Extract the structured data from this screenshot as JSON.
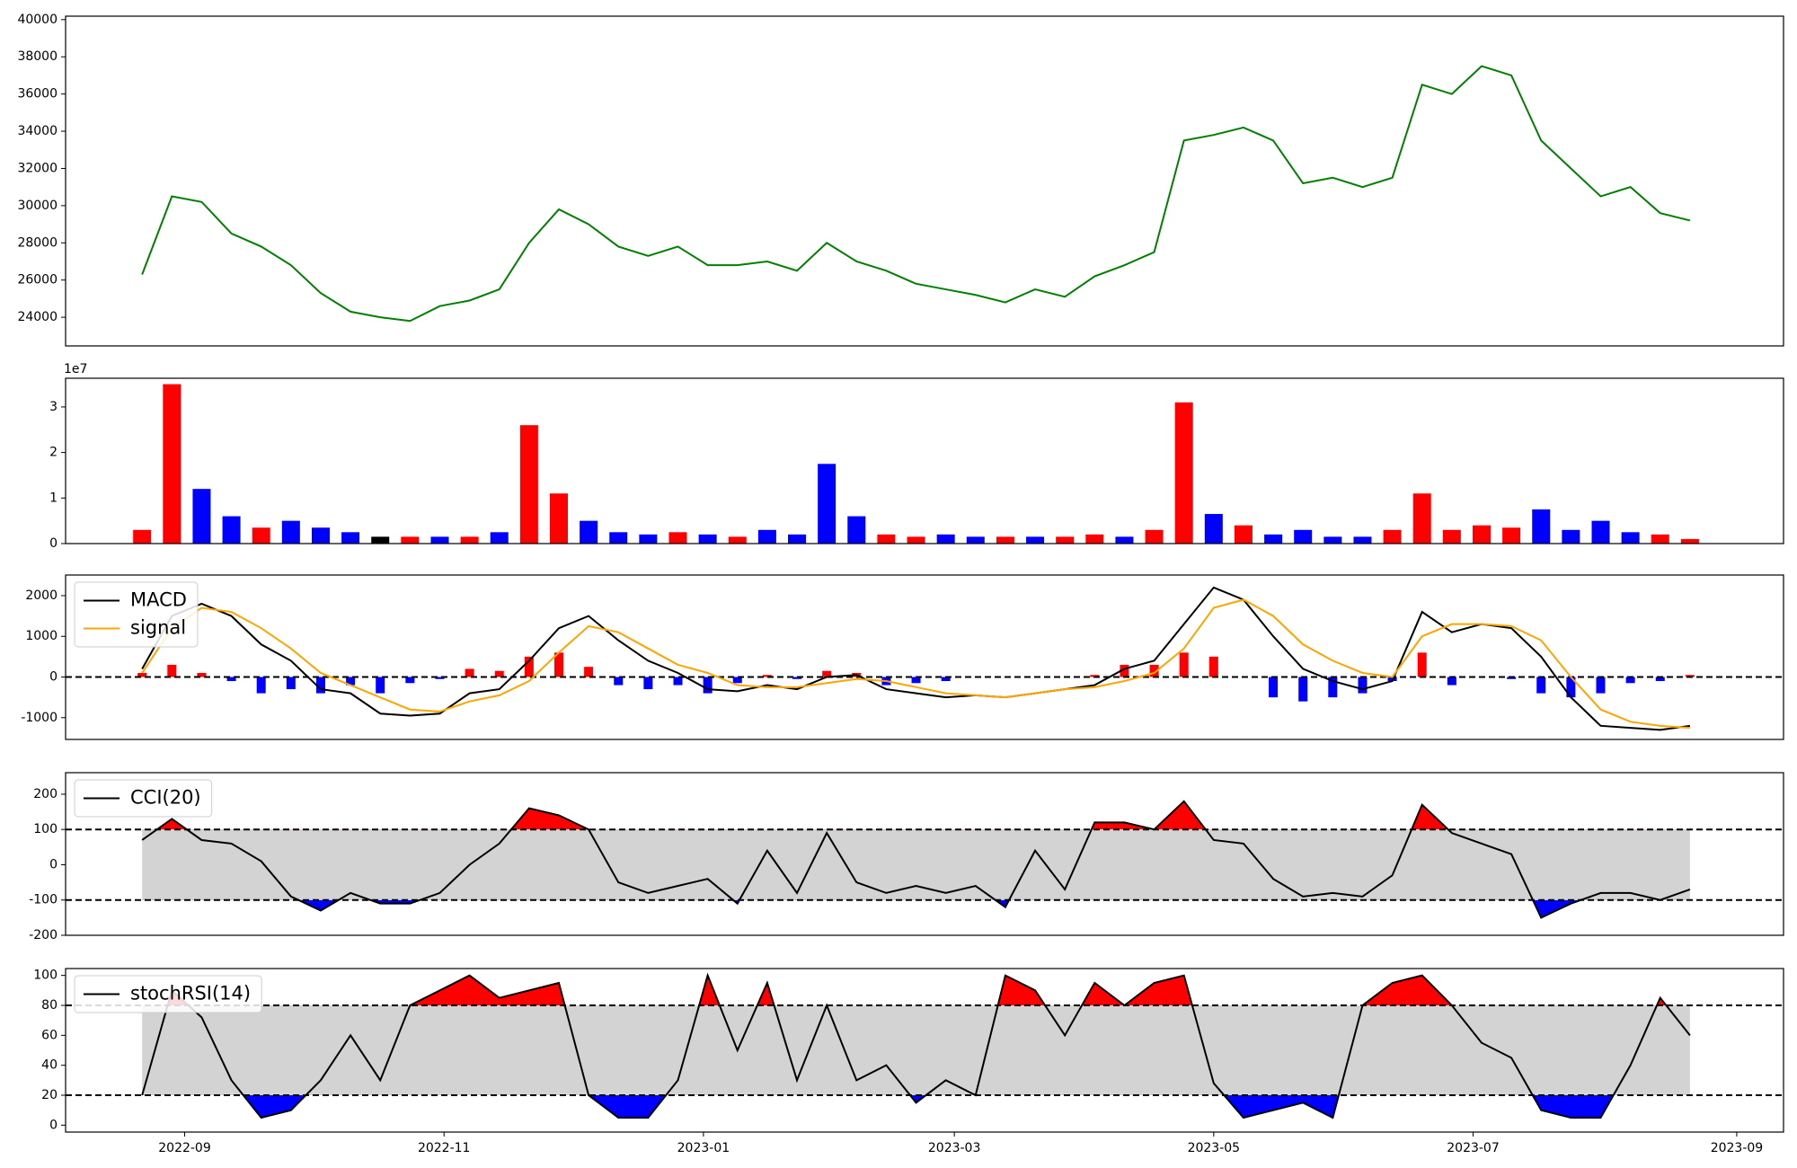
{
  "chart_data": [
    {
      "type": "line",
      "x": [
        "2022-08-22",
        "2022-08-29",
        "2022-09-05",
        "2022-09-12",
        "2022-09-19",
        "2022-09-26",
        "2022-10-03",
        "2022-10-10",
        "2022-10-17",
        "2022-10-24",
        "2022-10-31",
        "2022-11-07",
        "2022-11-14",
        "2022-11-21",
        "2022-11-28",
        "2022-12-05",
        "2022-12-12",
        "2022-12-19",
        "2022-12-26",
        "2023-01-02",
        "2023-01-09",
        "2023-01-16",
        "2023-01-23",
        "2023-01-30",
        "2023-02-06",
        "2023-02-13",
        "2023-02-20",
        "2023-02-27",
        "2023-03-06",
        "2023-03-13",
        "2023-03-20",
        "2023-03-27",
        "2023-04-03",
        "2023-04-10",
        "2023-04-17",
        "2023-04-24",
        "2023-05-01",
        "2023-05-08",
        "2023-05-15",
        "2023-05-22",
        "2023-05-29",
        "2023-06-05",
        "2023-06-12",
        "2023-06-19",
        "2023-06-26",
        "2023-07-03",
        "2023-07-10",
        "2023-07-17",
        "2023-07-24",
        "2023-07-31",
        "2023-08-07",
        "2023-08-14",
        "2023-08-21"
      ],
      "xlim": [
        "2022-08-04",
        "2023-09-12"
      ],
      "series": [
        {
          "color": "green",
          "values": [
            26300,
            30500,
            30200,
            28500,
            27800,
            26800,
            25300,
            24300,
            24000,
            23800,
            24600,
            24900,
            25500,
            28000,
            29800,
            29000,
            27800,
            27300,
            27800,
            26800,
            26800,
            27000,
            26500,
            28000,
            27000,
            26500,
            25800,
            25500,
            25200,
            24800,
            25500,
            25100,
            26200,
            26800,
            27500,
            33500,
            33800,
            34200,
            33500,
            31200,
            31500,
            31000,
            31500,
            36500,
            36000,
            37500,
            37000,
            33500,
            32000,
            30500,
            31000,
            29600,
            29200
          ]
        }
      ],
      "ylim": [
        22460,
        40185
      ],
      "yticks": [
        24000,
        26000,
        28000,
        30000,
        32000,
        34000,
        36000,
        38000,
        40000
      ]
    },
    {
      "type": "bar",
      "values": [
        3000000,
        35000000,
        12000000,
        6000000,
        3500000,
        5000000,
        3500000,
        2500000,
        1500000,
        1500000,
        1500000,
        1500000,
        2500000,
        26000000,
        11000000,
        5000000,
        2500000,
        2000000,
        2500000,
        2000000,
        1500000,
        3000000,
        2000000,
        17500000,
        6000000,
        2000000,
        1500000,
        2000000,
        1500000,
        1500000,
        1500000,
        1500000,
        2000000,
        1500000,
        3000000,
        31000000,
        6500000,
        4000000,
        2000000,
        3000000,
        1500000,
        1500000,
        3000000,
        11000000,
        3000000,
        4000000,
        3500000,
        7500000,
        3000000,
        5000000,
        2500000,
        2000000,
        1000000
      ],
      "colors": [
        "red",
        "red",
        "blue",
        "blue",
        "red",
        "blue",
        "blue",
        "blue",
        "black",
        "red",
        "blue",
        "red",
        "blue",
        "red",
        "red",
        "blue",
        "blue",
        "blue",
        "red",
        "blue",
        "red",
        "blue",
        "blue",
        "blue",
        "blue",
        "red",
        "red",
        "blue",
        "blue",
        "red",
        "blue",
        "red",
        "red",
        "blue",
        "red",
        "red",
        "blue",
        "red",
        "blue",
        "blue",
        "blue",
        "blue",
        "red",
        "red",
        "red",
        "red",
        "red",
        "blue",
        "blue",
        "blue",
        "blue",
        "red",
        "red"
      ],
      "ylim": [
        0,
        36300000
      ],
      "yticks": [
        0,
        {
          "value": 10000000,
          "label": "1"
        },
        {
          "value": 20000000,
          "label": "2"
        },
        {
          "value": 30000000,
          "label": "3"
        }
      ],
      "offset_label": "1e7"
    },
    {
      "type": "line",
      "series": [
        {
          "name": "MACD",
          "color": "black",
          "values": [
            200,
            1500,
            1800,
            1500,
            800,
            400,
            -300,
            -400,
            -900,
            -950,
            -900,
            -400,
            -300,
            400,
            1200,
            1500,
            900,
            400,
            100,
            -300,
            -350,
            -200,
            -300,
            0,
            50,
            -300,
            -400,
            -500,
            -450,
            -500,
            -400,
            -300,
            -200,
            200,
            400,
            1300,
            2200,
            1900,
            1000,
            200,
            -100,
            -300,
            -100,
            1600,
            1100,
            1300,
            1200,
            500,
            -500,
            -1200,
            -1250,
            -1300,
            -1200
          ]
        },
        {
          "name": "signal",
          "color": "orange",
          "values": [
            100,
            1200,
            1700,
            1600,
            1200,
            700,
            100,
            -200,
            -500,
            -800,
            -850,
            -600,
            -450,
            -100,
            600,
            1250,
            1100,
            700,
            300,
            100,
            -200,
            -250,
            -250,
            -150,
            -50,
            -100,
            -250,
            -400,
            -450,
            -500,
            -400,
            -300,
            -250,
            -100,
            100,
            700,
            1700,
            1900,
            1500,
            800,
            400,
            100,
            0,
            1000,
            1300,
            1300,
            1250,
            900,
            0,
            -800,
            -1100,
            -1200,
            -1250
          ]
        }
      ],
      "histogram": {
        "positive_color": "red",
        "negative_color": "blue",
        "values": [
          100,
          300,
          100,
          -100,
          -400,
          -300,
          -400,
          -200,
          -400,
          -150,
          -50,
          200,
          150,
          500,
          600,
          250,
          -200,
          -300,
          -200,
          -400,
          -150,
          50,
          -50,
          150,
          100,
          -200,
          -150,
          -100,
          0,
          0,
          0,
          0,
          50,
          300,
          300,
          600,
          500,
          0,
          -500,
          -600,
          -500,
          -400,
          -100,
          600,
          -200,
          0,
          -50,
          -400,
          -500,
          -400,
          -150,
          -100,
          50
        ]
      },
      "hlines": [
        0
      ],
      "ylim": [
        -1535,
        2507
      ],
      "yticks": [
        -1000,
        0,
        1000,
        2000
      ],
      "legend": "upper left"
    },
    {
      "type": "line",
      "series": [
        {
          "name": "CCI(20)",
          "color": "black",
          "values": [
            70,
            130,
            70,
            60,
            10,
            -90,
            -130,
            -80,
            -110,
            -110,
            -80,
            0,
            60,
            160,
            140,
            100,
            -50,
            -80,
            -60,
            -40,
            -110,
            40,
            -80,
            90,
            -50,
            -80,
            -60,
            -80,
            -60,
            -120,
            40,
            -70,
            120,
            120,
            100,
            180,
            70,
            60,
            -40,
            -90,
            -80,
            -90,
            -30,
            170,
            90,
            60,
            30,
            -150,
            -110,
            -80,
            -80,
            -100,
            -70
          ]
        }
      ],
      "band": {
        "lims": [
          -100,
          100
        ],
        "color": "lightgray",
        "above_color": "red",
        "below_color": "blue"
      },
      "ylim": [
        -200,
        261
      ],
      "yticks": [
        -200,
        -100,
        0,
        100,
        200
      ],
      "legend": "upper left"
    },
    {
      "type": "line",
      "series": [
        {
          "name": "stochRSI(14)",
          "color": "black",
          "values": [
            20,
            90,
            72,
            30,
            5,
            10,
            30,
            60,
            30,
            80,
            90,
            100,
            85,
            90,
            95,
            20,
            5,
            5,
            30,
            100,
            50,
            95,
            30,
            80,
            30,
            40,
            15,
            30,
            20,
            100,
            90,
            60,
            95,
            80,
            95,
            100,
            28,
            5,
            10,
            15,
            5,
            80,
            95,
            100,
            80,
            55,
            45,
            10,
            5,
            5,
            40,
            85,
            60
          ]
        }
      ],
      "band": {
        "lims": [
          20,
          80
        ],
        "color": "lightgray",
        "above_color": "red",
        "below_color": "blue"
      },
      "ylim": [
        -4.6,
        104.6
      ],
      "yticks": [
        0,
        20,
        40,
        60,
        80,
        100
      ],
      "legend": "upper left",
      "xticks": [
        {
          "value": "2022-09-01",
          "label": "2022-09"
        },
        {
          "value": "2022-11-01",
          "label": "2022-11"
        },
        {
          "value": "2023-01-01",
          "label": "2023-01"
        },
        {
          "value": "2023-03-01",
          "label": "2023-03"
        },
        {
          "value": "2023-05-01",
          "label": "2023-05"
        },
        {
          "value": "2023-07-01",
          "label": "2023-07"
        },
        {
          "value": "2023-09-01",
          "label": "2023-09"
        }
      ]
    }
  ]
}
